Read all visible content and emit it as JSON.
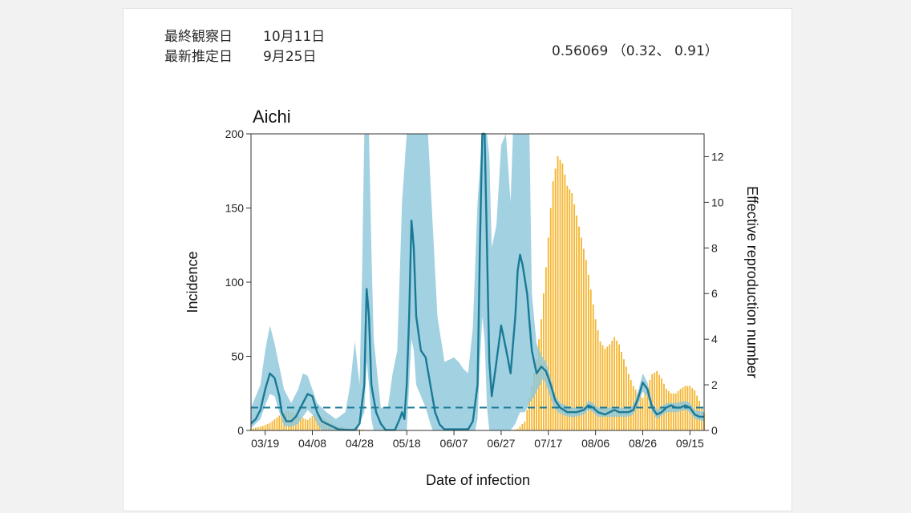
{
  "header": {
    "last_observation_label": "最終観察日",
    "last_observation_value": "10月11日",
    "latest_estimate_label": "最新推定日",
    "latest_estimate_value": "9月25日",
    "estimate_text": "0.56069 （0.32、 0.91）"
  },
  "chart_data": {
    "type": "bar",
    "title": "Aichi",
    "xlabel": "Date of infection",
    "ylabel": "Incidence",
    "y2label": "Effective reproduction number",
    "ylim": [
      0,
      200
    ],
    "y2lim": [
      0,
      13
    ],
    "yticks": [
      0,
      50,
      100,
      150,
      200
    ],
    "y2ticks": [
      0,
      2,
      4,
      6,
      8,
      10,
      12
    ],
    "x_tick_labels": [
      "03/19",
      "04/08",
      "04/28",
      "05/18",
      "06/07",
      "06/27",
      "07/17",
      "08/06",
      "08/26",
      "09/15"
    ],
    "x_tick_days": [
      6,
      26,
      46,
      66,
      86,
      106,
      126,
      146,
      166,
      186
    ],
    "day_range": [
      0,
      192
    ],
    "reference_line_R": 1,
    "incidence_knots": [
      [
        0,
        1
      ],
      [
        5,
        3
      ],
      [
        8,
        5
      ],
      [
        12,
        10
      ],
      [
        15,
        13
      ],
      [
        18,
        12
      ],
      [
        21,
        9
      ],
      [
        24,
        7
      ],
      [
        27,
        11
      ],
      [
        30,
        9
      ],
      [
        33,
        6
      ],
      [
        36,
        3
      ],
      [
        40,
        2
      ],
      [
        45,
        1
      ],
      [
        50,
        0
      ],
      [
        55,
        0
      ],
      [
        60,
        0
      ],
      [
        70,
        0
      ],
      [
        80,
        0
      ],
      [
        90,
        0
      ],
      [
        98,
        0
      ],
      [
        103,
        0
      ],
      [
        106,
        0
      ],
      [
        110,
        0
      ],
      [
        113,
        1
      ],
      [
        116,
        6
      ],
      [
        119,
        30
      ],
      [
        121,
        48
      ],
      [
        123,
        75
      ],
      [
        125,
        110
      ],
      [
        127,
        150
      ],
      [
        128,
        168
      ],
      [
        130,
        185
      ],
      [
        132,
        180
      ],
      [
        134,
        165
      ],
      [
        136,
        160
      ],
      [
        138,
        145
      ],
      [
        140,
        130
      ],
      [
        142,
        115
      ],
      [
        144,
        95
      ],
      [
        146,
        75
      ],
      [
        148,
        60
      ],
      [
        150,
        55
      ],
      [
        152,
        58
      ],
      [
        154,
        63
      ],
      [
        156,
        58
      ],
      [
        158,
        48
      ],
      [
        160,
        38
      ],
      [
        162,
        30
      ],
      [
        164,
        25
      ],
      [
        166,
        22
      ],
      [
        168,
        30
      ],
      [
        170,
        38
      ],
      [
        172,
        40
      ],
      [
        174,
        35
      ],
      [
        176,
        28
      ],
      [
        178,
        25
      ],
      [
        180,
        25
      ],
      [
        182,
        28
      ],
      [
        184,
        30
      ],
      [
        186,
        30
      ],
      [
        188,
        27
      ],
      [
        190,
        20
      ],
      [
        192,
        12
      ]
    ],
    "R_series": {
      "name": "Effective reproduction number",
      "knots": [
        [
          0,
          0.3
        ],
        [
          2,
          0.5
        ],
        [
          4,
          0.9
        ],
        [
          6,
          1.8
        ],
        [
          8,
          2.5
        ],
        [
          10,
          2.3
        ],
        [
          12,
          1.5
        ],
        [
          13,
          0.8
        ],
        [
          15,
          0.4
        ],
        [
          17,
          0.4
        ],
        [
          19,
          0.6
        ],
        [
          21,
          1.0
        ],
        [
          24,
          1.6
        ],
        [
          26,
          1.5
        ],
        [
          28,
          0.8
        ],
        [
          30,
          0.4
        ],
        [
          33,
          0.25
        ],
        [
          37,
          0.05
        ],
        [
          41,
          0.02
        ],
        [
          44,
          0.02
        ],
        [
          46,
          0.3
        ],
        [
          48,
          2.0
        ],
        [
          49,
          6.2
        ],
        [
          50,
          5.0
        ],
        [
          51,
          2.0
        ],
        [
          53,
          0.8
        ],
        [
          55,
          0.3
        ],
        [
          57,
          0.02
        ],
        [
          61,
          0.02
        ],
        [
          63,
          0.5
        ],
        [
          64,
          0.8
        ],
        [
          65,
          0.5
        ],
        [
          66,
          2.0
        ],
        [
          67,
          5.0
        ],
        [
          68,
          9.2
        ],
        [
          69,
          8.0
        ],
        [
          70,
          5.0
        ],
        [
          72,
          3.5
        ],
        [
          74,
          3.2
        ],
        [
          76,
          2.0
        ],
        [
          78,
          0.8
        ],
        [
          80,
          0.25
        ],
        [
          82,
          0.05
        ],
        [
          92,
          0.05
        ],
        [
          94,
          0.4
        ],
        [
          96,
          2.0
        ],
        [
          97,
          8.0
        ],
        [
          98,
          13.0
        ],
        [
          99,
          13.0
        ],
        [
          100,
          8.0
        ],
        [
          101,
          3.0
        ],
        [
          102,
          1.5
        ],
        [
          104,
          3.0
        ],
        [
          106,
          4.6
        ],
        [
          108,
          3.6
        ],
        [
          110,
          2.5
        ],
        [
          112,
          5.0
        ],
        [
          113,
          7.0
        ],
        [
          114,
          7.7
        ],
        [
          115,
          7.3
        ],
        [
          117,
          6.0
        ],
        [
          119,
          3.5
        ],
        [
          121,
          2.5
        ],
        [
          123,
          2.8
        ],
        [
          125,
          2.6
        ],
        [
          127,
          2.0
        ],
        [
          129,
          1.3
        ],
        [
          131,
          1.0
        ],
        [
          134,
          0.8
        ],
        [
          138,
          0.8
        ],
        [
          141,
          0.9
        ],
        [
          143,
          1.1
        ],
        [
          145,
          1.0
        ],
        [
          147,
          0.8
        ],
        [
          150,
          0.7
        ],
        [
          152,
          0.8
        ],
        [
          154,
          0.9
        ],
        [
          156,
          0.8
        ],
        [
          158,
          0.8
        ],
        [
          160,
          0.8
        ],
        [
          162,
          0.9
        ],
        [
          164,
          1.4
        ],
        [
          166,
          2.1
        ],
        [
          168,
          1.8
        ],
        [
          170,
          1.0
        ],
        [
          172,
          0.7
        ],
        [
          174,
          0.8
        ],
        [
          176,
          1.0
        ],
        [
          178,
          1.1
        ],
        [
          180,
          1.0
        ],
        [
          182,
          1.0
        ],
        [
          184,
          1.1
        ],
        [
          186,
          1.0
        ],
        [
          188,
          0.7
        ],
        [
          190,
          0.6
        ],
        [
          192,
          0.6
        ]
      ]
    },
    "R_upper_knots": [
      [
        0,
        1.0
      ],
      [
        4,
        2.0
      ],
      [
        6,
        3.5
      ],
      [
        8,
        4.6
      ],
      [
        10,
        3.8
      ],
      [
        12,
        2.8
      ],
      [
        14,
        1.8
      ],
      [
        17,
        1.2
      ],
      [
        20,
        1.8
      ],
      [
        22,
        2.5
      ],
      [
        24,
        2.4
      ],
      [
        26,
        1.8
      ],
      [
        28,
        1.2
      ],
      [
        32,
        0.8
      ],
      [
        36,
        0.5
      ],
      [
        40,
        0.8
      ],
      [
        42,
        2.0
      ],
      [
        44,
        3.9
      ],
      [
        46,
        2.0
      ],
      [
        47,
        6.5
      ],
      [
        48,
        13.0
      ],
      [
        50,
        13.0
      ],
      [
        51,
        8.0
      ],
      [
        52,
        4.0
      ],
      [
        55,
        1.0
      ],
      [
        58,
        1.0
      ],
      [
        60,
        2.5
      ],
      [
        62,
        3.5
      ],
      [
        64,
        10.0
      ],
      [
        66,
        13.0
      ],
      [
        75,
        13.0
      ],
      [
        77,
        9.0
      ],
      [
        79,
        5.0
      ],
      [
        82,
        3.0
      ],
      [
        86,
        3.2
      ],
      [
        88,
        3.0
      ],
      [
        90,
        2.7
      ],
      [
        92,
        2.5
      ],
      [
        94,
        4.5
      ],
      [
        96,
        10.0
      ],
      [
        98,
        13.0
      ],
      [
        100,
        13.0
      ],
      [
        101,
        12.0
      ],
      [
        102,
        8.0
      ],
      [
        104,
        9.0
      ],
      [
        106,
        12.5
      ],
      [
        108,
        13.0
      ],
      [
        110,
        10.0
      ],
      [
        111,
        13.0
      ],
      [
        118,
        13.0
      ],
      [
        119,
        6.0
      ],
      [
        121,
        3.8
      ],
      [
        123,
        3.3
      ],
      [
        125,
        3.0
      ],
      [
        127,
        2.3
      ],
      [
        129,
        1.5
      ],
      [
        131,
        1.2
      ],
      [
        136,
        1.0
      ],
      [
        141,
        1.0
      ],
      [
        143,
        1.3
      ],
      [
        145,
        1.2
      ],
      [
        147,
        1.0
      ],
      [
        152,
        1.0
      ],
      [
        156,
        1.0
      ],
      [
        160,
        1.0
      ],
      [
        162,
        1.1
      ],
      [
        164,
        1.7
      ],
      [
        166,
        2.5
      ],
      [
        168,
        2.1
      ],
      [
        170,
        1.2
      ],
      [
        172,
        0.9
      ],
      [
        176,
        1.2
      ],
      [
        180,
        1.2
      ],
      [
        184,
        1.3
      ],
      [
        186,
        1.2
      ],
      [
        188,
        0.9
      ],
      [
        192,
        0.8
      ]
    ],
    "R_lower_knots": [
      [
        0,
        0.1
      ],
      [
        4,
        0.5
      ],
      [
        6,
        1.1
      ],
      [
        8,
        1.6
      ],
      [
        10,
        1.5
      ],
      [
        12,
        0.8
      ],
      [
        14,
        0.2
      ],
      [
        17,
        0.15
      ],
      [
        20,
        0.3
      ],
      [
        22,
        0.6
      ],
      [
        24,
        0.9
      ],
      [
        26,
        0.7
      ],
      [
        28,
        0.3
      ],
      [
        30,
        0
      ],
      [
        45,
        0
      ],
      [
        48,
        0.8
      ],
      [
        49,
        3.0
      ],
      [
        50,
        2.0
      ],
      [
        51,
        0.5
      ],
      [
        52,
        0
      ],
      [
        66,
        0
      ],
      [
        67,
        2.0
      ],
      [
        68,
        4.0
      ],
      [
        69,
        3.5
      ],
      [
        70,
        2.0
      ],
      [
        72,
        1.5
      ],
      [
        74,
        1.0
      ],
      [
        76,
        0.3
      ],
      [
        77,
        0
      ],
      [
        95,
        0
      ],
      [
        96,
        0.5
      ],
      [
        97,
        3.0
      ],
      [
        98,
        5.0
      ],
      [
        99,
        4.0
      ],
      [
        100,
        1.0
      ],
      [
        101,
        0
      ],
      [
        110,
        0
      ],
      [
        112,
        0.3
      ],
      [
        114,
        0.8
      ],
      [
        116,
        0.8
      ],
      [
        118,
        1.2
      ],
      [
        120,
        1.5
      ],
      [
        122,
        1.9
      ],
      [
        124,
        2.3
      ],
      [
        126,
        1.7
      ],
      [
        128,
        1.1
      ],
      [
        130,
        0.8
      ],
      [
        134,
        0.6
      ],
      [
        138,
        0.6
      ],
      [
        141,
        0.7
      ],
      [
        143,
        0.9
      ],
      [
        145,
        0.8
      ],
      [
        147,
        0.6
      ],
      [
        152,
        0.6
      ],
      [
        156,
        0.6
      ],
      [
        160,
        0.6
      ],
      [
        162,
        0.7
      ],
      [
        164,
        1.1
      ],
      [
        166,
        1.7
      ],
      [
        168,
        1.5
      ],
      [
        170,
        0.8
      ],
      [
        172,
        0.5
      ],
      [
        176,
        0.8
      ],
      [
        180,
        0.8
      ],
      [
        184,
        0.9
      ],
      [
        186,
        0.8
      ],
      [
        188,
        0.5
      ],
      [
        192,
        0.4
      ]
    ],
    "colors": {
      "bars": "#f5b52e",
      "R_line": "#1a7a96",
      "R_band": "#8ec7db",
      "reference_line": "#1a7a96"
    }
  }
}
